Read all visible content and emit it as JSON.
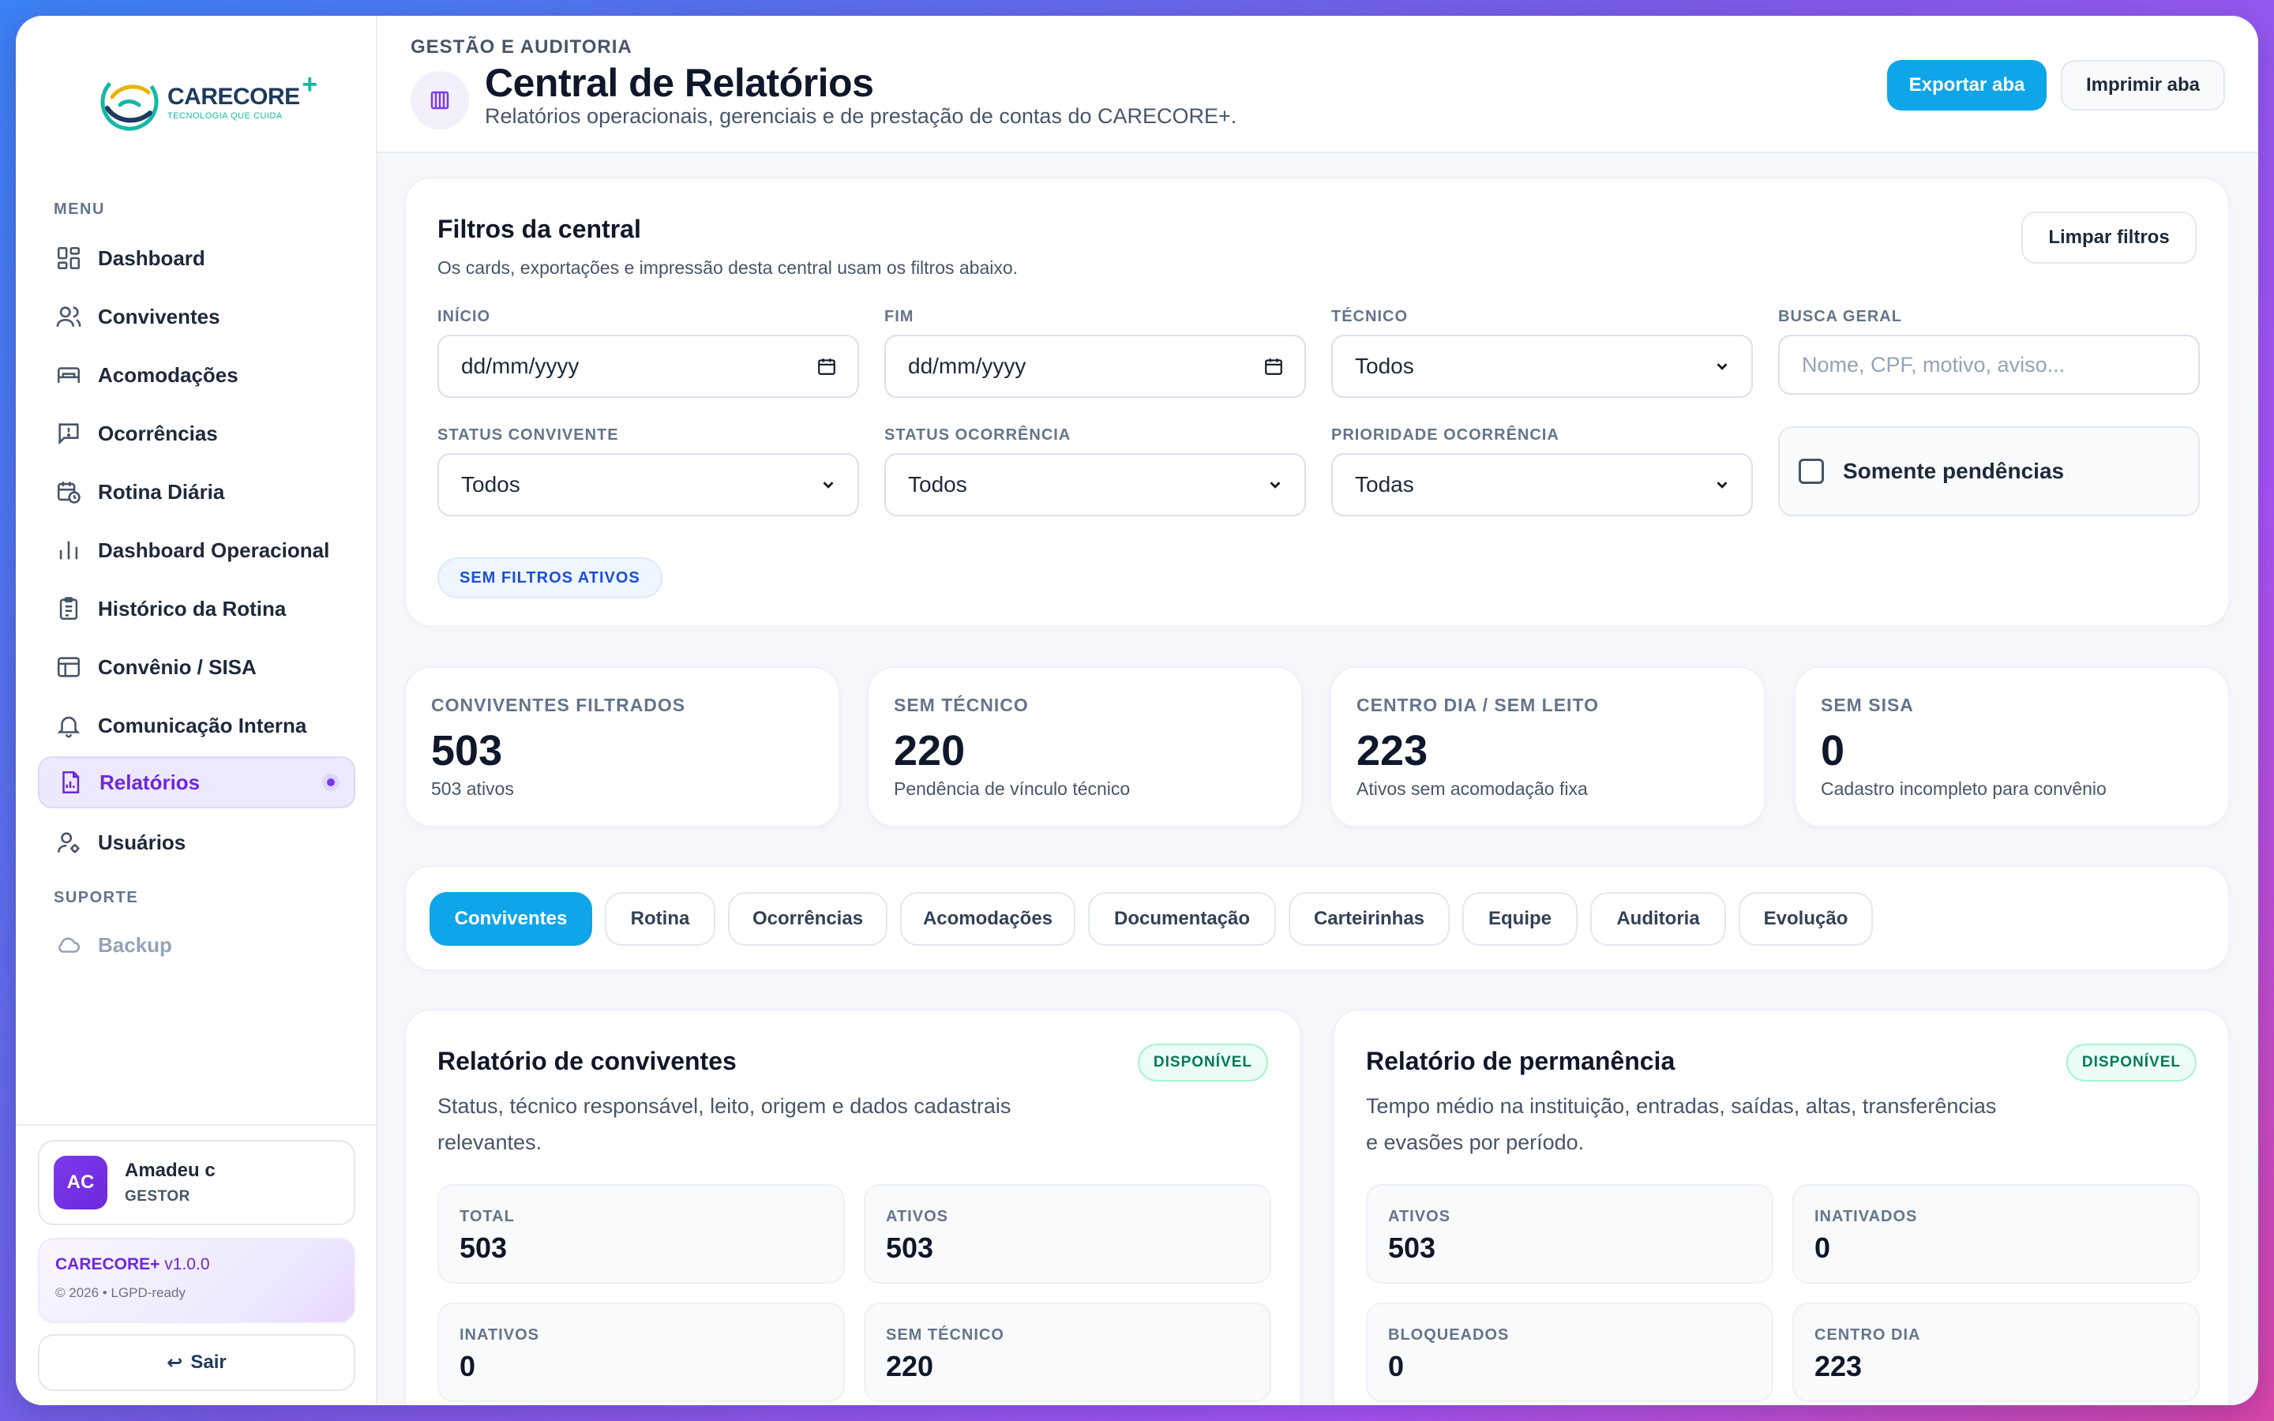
{
  "brand": {
    "name": "CARECORE",
    "plus": "+",
    "tagline": "TECNOLOGIA QUE CUIDA"
  },
  "sidebar": {
    "menu_label": "MENU",
    "items": [
      {
        "label": "Dashboard",
        "icon": "dashboard-icon"
      },
      {
        "label": "Conviventes",
        "icon": "users-icon"
      },
      {
        "label": "Acomodações",
        "icon": "bed-icon"
      },
      {
        "label": "Ocorrências",
        "icon": "alert-message-icon"
      },
      {
        "label": "Rotina Diária",
        "icon": "calendar-clock-icon"
      },
      {
        "label": "Dashboard Operacional",
        "icon": "bar-chart-icon"
      },
      {
        "label": "Histórico da Rotina",
        "icon": "clipboard-icon"
      },
      {
        "label": "Convênio / SISA",
        "icon": "layout-icon"
      },
      {
        "label": "Comunicação Interna",
        "icon": "bell-icon"
      },
      {
        "label": "Relatórios",
        "icon": "report-icon",
        "active": true
      },
      {
        "label": "Usuários",
        "icon": "user-cog-icon"
      }
    ],
    "support_label": "SUPORTE",
    "support_items": [
      {
        "label": "Backup",
        "icon": "cloud-icon"
      }
    ],
    "user": {
      "initials": "AC",
      "name": "Amadeu c",
      "role": "GESTOR"
    },
    "version": {
      "product": "CARECORE+",
      "version": "v1.0.0",
      "copyright": "© 2026 • LGPD-ready"
    },
    "logout_label": "Sair"
  },
  "header": {
    "eyebrow": "GESTÃO E AUDITORIA",
    "title": "Central de Relatórios",
    "subtitle": "Relatórios operacionais, gerenciais e de prestação de contas do CARECORE+.",
    "export_label": "Exportar aba",
    "print_label": "Imprimir aba"
  },
  "filters": {
    "title": "Filtros da central",
    "description": "Os cards, exportações e impressão desta central usam os filtros abaixo.",
    "clear_label": "Limpar filtros",
    "start": {
      "label": "INÍCIO",
      "value": "dd/mm/yyyy"
    },
    "end": {
      "label": "FIM",
      "value": "dd/mm/yyyy"
    },
    "technician": {
      "label": "TÉCNICO",
      "value": "Todos"
    },
    "search": {
      "label": "BUSCA GERAL",
      "placeholder": "Nome, CPF, motivo, aviso..."
    },
    "convivente_status": {
      "label": "STATUS CONVIVENTE",
      "value": "Todos"
    },
    "occurrence_status": {
      "label": "STATUS OCORRÊNCIA",
      "value": "Todos"
    },
    "occurrence_priority": {
      "label": "PRIORIDADE OCORRÊNCIA",
      "value": "Todas"
    },
    "pending_only": {
      "label": "Somente pendências",
      "checked": false
    },
    "status_chip": "SEM FILTROS ATIVOS"
  },
  "stats": [
    {
      "label": "CONVIVENTES FILTRADOS",
      "value": "503",
      "sub": "503 ativos"
    },
    {
      "label": "SEM TÉCNICO",
      "value": "220",
      "sub": "Pendência de vínculo técnico"
    },
    {
      "label": "CENTRO DIA / SEM LEITO",
      "value": "223",
      "sub": "Ativos sem acomodação fixa"
    },
    {
      "label": "SEM SISA",
      "value": "0",
      "sub": "Cadastro incompleto para convênio"
    }
  ],
  "tabs": [
    "Conviventes",
    "Rotina",
    "Ocorrências",
    "Acomodações",
    "Documentação",
    "Carteirinhas",
    "Equipe",
    "Auditoria",
    "Evolução"
  ],
  "active_tab": "Conviventes",
  "reports": [
    {
      "title": "Relatório de conviventes",
      "badge": "DISPONÍVEL",
      "description": "Status, técnico responsável, leito, origem e dados cadastrais relevantes.",
      "metrics": [
        {
          "label": "TOTAL",
          "value": "503"
        },
        {
          "label": "ATIVOS",
          "value": "503"
        },
        {
          "label": "INATIVOS",
          "value": "0"
        },
        {
          "label": "SEM TÉCNICO",
          "value": "220"
        }
      ]
    },
    {
      "title": "Relatório de permanência",
      "badge": "DISPONÍVEL",
      "description": "Tempo médio na instituição, entradas, saídas, altas, transferências e evasões por período.",
      "metrics": [
        {
          "label": "ATIVOS",
          "value": "503"
        },
        {
          "label": "INATIVADOS",
          "value": "0"
        },
        {
          "label": "BLOQUEADOS",
          "value": "0"
        },
        {
          "label": "CENTRO DIA",
          "value": "223"
        }
      ]
    }
  ],
  "colors": {
    "primary": "#0ea5e9",
    "accent": "#7c3aed",
    "success": "#047857"
  }
}
